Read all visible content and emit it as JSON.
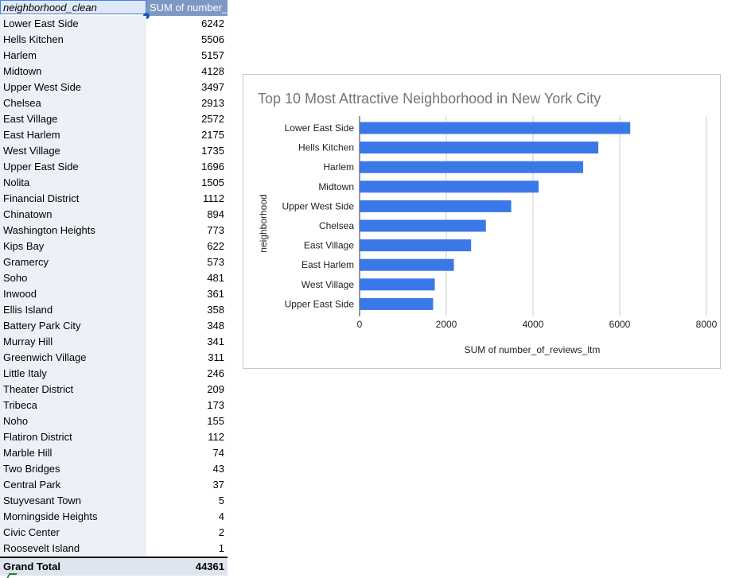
{
  "pivot": {
    "header": {
      "col1": "neighborhood_clean",
      "col2": "SUM of number_"
    },
    "rows": [
      {
        "name": "Lower East Side",
        "value": "6242"
      },
      {
        "name": "Hells Kitchen",
        "value": "5506"
      },
      {
        "name": "Harlem",
        "value": "5157"
      },
      {
        "name": "Midtown",
        "value": "4128"
      },
      {
        "name": "Upper West Side",
        "value": "3497"
      },
      {
        "name": "Chelsea",
        "value": "2913"
      },
      {
        "name": "East Village",
        "value": "2572"
      },
      {
        "name": "East Harlem",
        "value": "2175"
      },
      {
        "name": "West Village",
        "value": "1735"
      },
      {
        "name": "Upper East Side",
        "value": "1696"
      },
      {
        "name": "Nolita",
        "value": "1505"
      },
      {
        "name": "Financial District",
        "value": "1112"
      },
      {
        "name": "Chinatown",
        "value": "894"
      },
      {
        "name": "Washington Heights",
        "value": "773"
      },
      {
        "name": "Kips Bay",
        "value": "622"
      },
      {
        "name": "Gramercy",
        "value": "573"
      },
      {
        "name": "Soho",
        "value": "481"
      },
      {
        "name": "Inwood",
        "value": "361"
      },
      {
        "name": "Ellis Island",
        "value": "358"
      },
      {
        "name": "Battery Park City",
        "value": "348"
      },
      {
        "name": "Murray Hill",
        "value": "341"
      },
      {
        "name": "Greenwich Village",
        "value": "311"
      },
      {
        "name": "Little Italy",
        "value": "246"
      },
      {
        "name": "Theater District",
        "value": "209"
      },
      {
        "name": "Tribeca",
        "value": "173"
      },
      {
        "name": "Noho",
        "value": "155"
      },
      {
        "name": "Flatiron District",
        "value": "112"
      },
      {
        "name": "Marble Hill",
        "value": "74"
      },
      {
        "name": "Two Bridges",
        "value": "43"
      },
      {
        "name": "Central Park",
        "value": "37"
      },
      {
        "name": "Stuyvesant Town",
        "value": "5"
      },
      {
        "name": "Morningside Heights",
        "value": "4"
      },
      {
        "name": "Civic Center",
        "value": "2"
      },
      {
        "name": "Roosevelt Island",
        "value": "1"
      }
    ],
    "total": {
      "label": "Grand Total",
      "value": "44361"
    }
  },
  "chart_data": {
    "type": "bar",
    "orientation": "horizontal",
    "title": "Top 10 Most Attractive Neighborhood in New York City",
    "xlabel": "SUM of number_of_reviews_ltm",
    "ylabel": "neighborhood",
    "categories": [
      "Lower East Side",
      "Hells Kitchen",
      "Harlem",
      "Midtown",
      "Upper West Side",
      "Chelsea",
      "East Village",
      "East Harlem",
      "West Village",
      "Upper East Side"
    ],
    "values": [
      6242,
      5506,
      5157,
      4128,
      3497,
      2913,
      2572,
      2175,
      1735,
      1696
    ],
    "xlim": [
      0,
      8000
    ],
    "xticks": [
      "0",
      "2000",
      "4000",
      "6000",
      "8000"
    ],
    "bar_color": "#3b78e7",
    "grid": true
  }
}
